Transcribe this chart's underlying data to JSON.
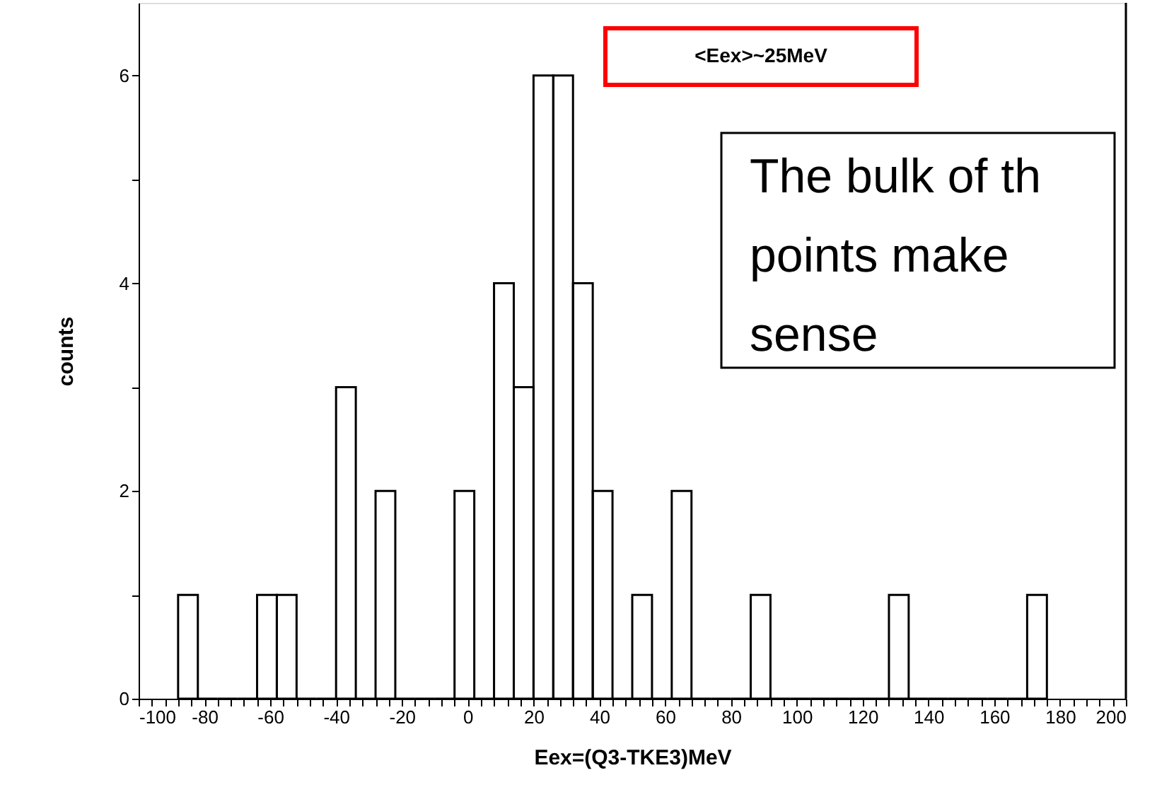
{
  "chart_data": {
    "type": "histogram",
    "xlabel": "Eex=(Q3-TKE3)MeV",
    "ylabel": "counts",
    "bins": [
      -88,
      -82,
      -76,
      -70,
      -64,
      -58,
      -52,
      -46,
      -40,
      -34,
      -28,
      -22,
      -16,
      -10,
      -4,
      2,
      8,
      14,
      20,
      26,
      32,
      38,
      44,
      50,
      56,
      62,
      68,
      74,
      80,
      86,
      92,
      98,
      104,
      110,
      116,
      122,
      128,
      134,
      140,
      146,
      152,
      158,
      164,
      170,
      176
    ],
    "values": [
      1,
      0,
      0,
      0,
      1,
      1,
      0,
      0,
      3,
      0,
      2,
      0,
      0,
      0,
      2,
      0,
      4,
      3,
      6,
      6,
      4,
      2,
      0,
      1,
      0,
      2,
      0,
      0,
      0,
      1,
      0,
      0,
      0,
      0,
      0,
      0,
      1,
      0,
      0,
      0,
      0,
      0,
      0,
      1
    ],
    "color": "#000000",
    "xlim": [
      -100,
      200
    ],
    "ylim": [
      0,
      6.7
    ],
    "xticks": [
      -100,
      {
        "value": -96,
        "label": null
      },
      {
        "value": -92,
        "label": null
      },
      {
        "value": -88,
        "label": null
      },
      {
        "value": -84,
        "label": null
      },
      -80,
      {
        "value": -76,
        "label": null
      },
      {
        "value": -72,
        "label": null
      },
      {
        "value": -68,
        "label": null
      },
      {
        "value": -64,
        "label": null
      },
      -60,
      {
        "value": -56,
        "label": null
      },
      {
        "value": -52,
        "label": null
      },
      {
        "value": -48,
        "label": null
      },
      {
        "value": -44,
        "label": null
      },
      -40,
      {
        "value": -36,
        "label": null
      },
      {
        "value": -32,
        "label": null
      },
      {
        "value": -28,
        "label": null
      },
      {
        "value": -24,
        "label": null
      },
      -20,
      {
        "value": -16,
        "label": null
      },
      {
        "value": -12,
        "label": null
      },
      {
        "value": -8,
        "label": null
      },
      {
        "value": -4,
        "label": null
      },
      0,
      {
        "value": 4,
        "label": null
      },
      {
        "value": 8,
        "label": null
      },
      {
        "value": 12,
        "label": null
      },
      {
        "value": 16,
        "label": null
      },
      20,
      {
        "value": 24,
        "label": null
      },
      {
        "value": 28,
        "label": null
      },
      {
        "value": 32,
        "label": null
      },
      {
        "value": 36,
        "label": null
      },
      40,
      {
        "value": 44,
        "label": null
      },
      {
        "value": 48,
        "label": null
      },
      {
        "value": 52,
        "label": null
      },
      {
        "value": 56,
        "label": null
      },
      60,
      {
        "value": 64,
        "label": null
      },
      {
        "value": 68,
        "label": null
      },
      {
        "value": 72,
        "label": null
      },
      {
        "value": 76,
        "label": null
      },
      80,
      {
        "value": 84,
        "label": null
      },
      {
        "value": 88,
        "label": null
      },
      {
        "value": 92,
        "label": null
      },
      {
        "value": 96,
        "label": null
      },
      100,
      {
        "value": 104,
        "label": null
      },
      {
        "value": 108,
        "label": null
      },
      {
        "value": 112,
        "label": null
      },
      {
        "value": 116,
        "label": null
      },
      120,
      {
        "value": 124,
        "label": null
      },
      {
        "value": 128,
        "label": null
      },
      {
        "value": 132,
        "label": null
      },
      {
        "value": 136,
        "label": null
      },
      140,
      {
        "value": 144,
        "label": null
      },
      {
        "value": 148,
        "label": null
      },
      {
        "value": 152,
        "label": null
      },
      {
        "value": 156,
        "label": null
      },
      160,
      {
        "value": 164,
        "label": null
      },
      {
        "value": 168,
        "label": null
      },
      {
        "value": 172,
        "label": null
      },
      {
        "value": 176,
        "label": null
      },
      180,
      {
        "value": 184,
        "label": null
      },
      {
        "value": 188,
        "label": null
      },
      {
        "value": 192,
        "label": null
      },
      {
        "value": 196,
        "label": null
      },
      200
    ],
    "yticks": [
      0,
      {
        "value": 1,
        "label": null
      },
      2,
      {
        "value": 3,
        "label": null
      },
      4,
      {
        "value": 5,
        "label": null
      },
      6
    ],
    "grid": false,
    "annotations": [
      "<Eex>~25MeV",
      "The bulk of th\npoints make\nsense"
    ]
  }
}
